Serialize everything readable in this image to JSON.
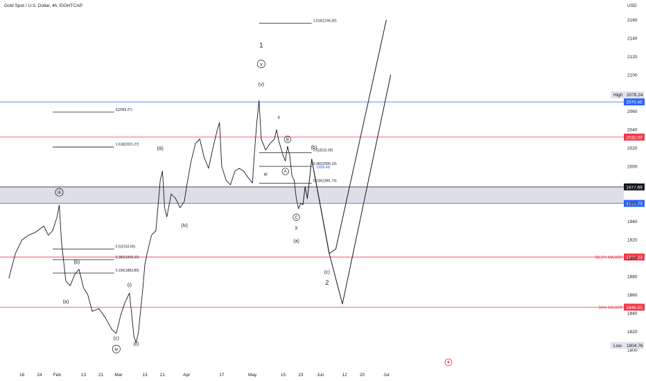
{
  "title": "Gold Spot / U.S. Dollar, 4h, EIGHTCAP",
  "currency": "USD",
  "chart_data": {
    "type": "line",
    "title": "Gold Spot / U.S. Dollar, 4h, EIGHTCAP",
    "symbol": "Gold Spot / U.S. Dollar",
    "timeframe": "4h",
    "exchange": "EIGHTCAP",
    "ylim": [
      1800,
      2165
    ],
    "y_scale": "linear",
    "grid": false,
    "y_ticks": [
      1800,
      1820,
      1840,
      1860,
      1880,
      1900,
      1920,
      1940,
      1960,
      1980,
      2000,
      2020,
      2040,
      2060,
      2080,
      2100,
      2120,
      2140,
      2160
    ],
    "x_ticks": [
      {
        "label": "16",
        "x": "2023-01-16"
      },
      {
        "label": "24",
        "x": "2023-01-24"
      },
      {
        "label": "Feb",
        "x": "2023-02-01"
      },
      {
        "label": "13",
        "x": "2023-02-13"
      },
      {
        "label": "21",
        "x": "2023-02-21"
      },
      {
        "label": "Mar",
        "x": "2023-03-01"
      },
      {
        "label": "13",
        "x": "2023-03-13"
      },
      {
        "label": "21",
        "x": "2023-03-21"
      },
      {
        "label": "Apr",
        "x": "2023-04-01"
      },
      {
        "label": "17",
        "x": "2023-04-17"
      },
      {
        "label": "May",
        "x": "2023-05-01"
      },
      {
        "label": "15",
        "x": "2023-05-15"
      },
      {
        "label": "23",
        "x": "2023-05-23"
      },
      {
        "label": "Jun",
        "x": "2023-06-01"
      },
      {
        "label": "12",
        "x": "2023-06-12"
      },
      {
        "label": "20",
        "x": "2023-06-20"
      },
      {
        "label": "Jul",
        "x": "2023-07-01"
      }
    ],
    "series": [
      {
        "color": "#131722",
        "points": [
          [
            "2023-01-10",
            1878
          ],
          [
            "2023-01-13",
            1905
          ],
          [
            "2023-01-16",
            1920
          ],
          [
            "2023-01-19",
            1925
          ],
          [
            "2023-01-22",
            1928
          ],
          [
            "2023-01-26",
            1935
          ],
          [
            "2023-01-28",
            1925
          ],
          [
            "2023-01-30",
            1930
          ],
          [
            "2023-02-01",
            1945
          ],
          [
            "2023-02-02",
            1958
          ],
          [
            "2023-02-03",
            1918
          ],
          [
            "2023-02-05",
            1875
          ],
          [
            "2023-02-07",
            1870
          ],
          [
            "2023-02-09",
            1882
          ],
          [
            "2023-02-11",
            1888
          ],
          [
            "2023-02-13",
            1868
          ],
          [
            "2023-02-15",
            1860
          ],
          [
            "2023-02-17",
            1842
          ],
          [
            "2023-02-20",
            1845
          ],
          [
            "2023-02-23",
            1835
          ],
          [
            "2023-02-26",
            1822
          ],
          [
            "2023-02-28",
            1818
          ],
          [
            "2023-03-02",
            1838
          ],
          [
            "2023-03-04",
            1852
          ],
          [
            "2023-03-06",
            1862
          ],
          [
            "2023-03-08",
            1815
          ],
          [
            "2023-03-09",
            1808
          ],
          [
            "2023-03-10",
            1818
          ],
          [
            "2023-03-12",
            1865
          ],
          [
            "2023-03-13",
            1893
          ],
          [
            "2023-03-14",
            1905
          ],
          [
            "2023-03-16",
            1925
          ],
          [
            "2023-03-18",
            1930
          ],
          [
            "2023-03-20",
            1985
          ],
          [
            "2023-03-21",
            1995
          ],
          [
            "2023-03-22",
            1955
          ],
          [
            "2023-03-23",
            1945
          ],
          [
            "2023-03-25",
            1970
          ],
          [
            "2023-03-27",
            1965
          ],
          [
            "2023-03-29",
            1955
          ],
          [
            "2023-03-31",
            1962
          ],
          [
            "2023-04-01",
            1978
          ],
          [
            "2023-04-03",
            2005
          ],
          [
            "2023-04-05",
            2025
          ],
          [
            "2023-04-07",
            2030
          ],
          [
            "2023-04-09",
            2010
          ],
          [
            "2023-04-11",
            1998
          ],
          [
            "2023-04-13",
            2020
          ],
          [
            "2023-04-15",
            2040
          ],
          [
            "2023-04-16",
            2048
          ],
          [
            "2023-04-17",
            2000
          ],
          [
            "2023-04-19",
            1985
          ],
          [
            "2023-04-21",
            1980
          ],
          [
            "2023-04-23",
            1995
          ],
          [
            "2023-04-25",
            1998
          ],
          [
            "2023-04-27",
            1995
          ],
          [
            "2023-04-29",
            1988
          ],
          [
            "2023-05-01",
            1982
          ],
          [
            "2023-05-02",
            2018
          ],
          [
            "2023-05-03",
            2048
          ],
          [
            "2023-05-04",
            2072
          ],
          [
            "2023-05-05",
            2030
          ],
          [
            "2023-05-07",
            2018
          ],
          [
            "2023-05-09",
            2025
          ],
          [
            "2023-05-11",
            2030
          ],
          [
            "2023-05-12",
            2040
          ],
          [
            "2023-05-13",
            2028
          ],
          [
            "2023-05-15",
            2012
          ],
          [
            "2023-05-16",
            2006
          ],
          [
            "2023-05-17",
            2022
          ],
          [
            "2023-05-18",
            2012
          ],
          [
            "2023-05-19",
            1990
          ],
          [
            "2023-05-20",
            1985
          ],
          [
            "2023-05-21",
            1965
          ],
          [
            "2023-05-22",
            1954
          ],
          [
            "2023-05-23",
            1960
          ],
          [
            "2023-05-24",
            1958
          ]
        ]
      },
      {
        "color": "#131722",
        "points": [
          [
            "2023-05-24",
            1958
          ],
          [
            "2023-05-25",
            1978
          ],
          [
            "2023-05-26",
            1965
          ],
          [
            "2023-05-28",
            2008
          ],
          [
            "2023-06-05",
            1905
          ],
          [
            "2023-06-08",
            1910
          ],
          [
            "2023-07-01",
            2160
          ]
        ]
      },
      {
        "color": "#131722",
        "points": [
          [
            "2023-05-28",
            2008
          ],
          [
            "2023-06-05",
            1905
          ],
          [
            "2023-06-11",
            1850
          ],
          [
            "2023-07-03",
            2100
          ]
        ]
      }
    ],
    "horizontal_levels": [
      {
        "value": 2070.45,
        "color": "#2962ff",
        "label": "2070.45"
      },
      {
        "value": 2032.09,
        "color": "#f23645",
        "label": "2032.09"
      },
      {
        "value": 1977.69,
        "color": "#131722",
        "label": "1977.69"
      },
      {
        "value": 1959.73,
        "color": "#2962ff",
        "label": "1959.73"
      },
      {
        "value": 1901.23,
        "color": "#f23645",
        "label": "1901.23",
        "note": "38.2% MAJOR"
      },
      {
        "value": 1846.55,
        "color": "#f23645",
        "label": "1846.55",
        "note": "50% MAJOR"
      }
    ],
    "highlight_band": [
      1960,
      1978
    ],
    "high_label": {
      "text": "High",
      "value": "2078.24"
    },
    "low_label": {
      "text": "Low",
      "value": "1804.76"
    },
    "fib_levels": [
      {
        "label": "1.618(2156.30)",
        "value": 2156.3,
        "x1": "2023-05-04",
        "x2": "2023-05-28"
      },
      {
        "label": "2(2059.27)",
        "value": 2059.27,
        "x1": "2023-01-30",
        "x2": "2023-02-27"
      },
      {
        "label": "1.618(2021.27)",
        "value": 2021.27,
        "x1": "2023-01-30",
        "x2": "2023-02-27"
      },
      {
        "label": "0.5(1910.06)",
        "value": 1910.06,
        "x1": "2023-01-30",
        "x2": "2023-02-27"
      },
      {
        "label": "0.382(1898.32)",
        "value": 1898.32,
        "x1": "2023-01-30",
        "x2": "2023-02-27"
      },
      {
        "label": "0.236(1883.80)",
        "value": 1883.8,
        "x1": "2023-01-30",
        "x2": "2023-02-27"
      },
      {
        "label": "0.5(2015.09)",
        "value": 2015.09,
        "x1": "2023-05-04",
        "x2": "2023-05-28"
      },
      {
        "label": "0.382(2000.18)",
        "value": 2000.18,
        "x1": "2023-05-04",
        "x2": "2023-05-28"
      },
      {
        "label": "0.236(1981.74)",
        "value": 1981.74,
        "x1": "2023-05-04",
        "x2": "2023-05-28"
      }
    ],
    "annotations": [
      {
        "text": "1",
        "x": "2023-05-05",
        "y": 2130,
        "size": 10
      },
      {
        "text": "v",
        "x": "2023-05-05",
        "y": 2110,
        "size": 7,
        "circled": true
      },
      {
        "text": "(v)",
        "x": "2023-05-05",
        "y": 2088,
        "size": 7
      },
      {
        "text": "x",
        "x": "2023-05-13",
        "y": 2052,
        "size": 7
      },
      {
        "text": "B",
        "x": "2023-05-17",
        "y": 2028,
        "size": 6,
        "circled": true
      },
      {
        "text": "(b)",
        "x": "2023-05-29",
        "y": 2019,
        "size": 7
      },
      {
        "text": "w",
        "x": "2023-05-07",
        "y": 1990,
        "size": 7
      },
      {
        "text": "A",
        "x": "2023-05-16",
        "y": 1993,
        "size": 6,
        "circled": true
      },
      {
        "text": "C",
        "x": "2023-05-21",
        "y": 1943,
        "size": 6,
        "circled": true
      },
      {
        "text": "y",
        "x": "2023-05-21",
        "y": 1932,
        "size": 7
      },
      {
        "text": "(a)",
        "x": "2023-05-21",
        "y": 1917,
        "size": 7
      },
      {
        "text": "(c)",
        "x": "2023-06-04",
        "y": 1883,
        "size": 7
      },
      {
        "text": "2",
        "x": "2023-06-04",
        "y": 1871,
        "size": 9
      },
      {
        "text": "iii",
        "x": "2023-02-02",
        "y": 1970,
        "size": 7,
        "circled": true
      },
      {
        "text": "(b)",
        "x": "2023-02-10",
        "y": 1894,
        "size": 7
      },
      {
        "text": "(a)",
        "x": "2023-02-05",
        "y": 1851,
        "size": 7
      },
      {
        "text": "(c)",
        "x": "2023-02-28",
        "y": 1811,
        "size": 7
      },
      {
        "text": "iv",
        "x": "2023-02-28",
        "y": 1799,
        "size": 7,
        "circled": true
      },
      {
        "text": "(i)",
        "x": "2023-03-06",
        "y": 1869,
        "size": 7
      },
      {
        "text": "(ii)",
        "x": "2023-03-09",
        "y": 1805,
        "size": 7
      },
      {
        "text": "(iii)",
        "x": "2023-03-20",
        "y": 2018,
        "size": 7
      },
      {
        "text": "(iv)",
        "x": "2023-03-31",
        "y": 1934,
        "size": 7
      }
    ],
    "extra_labels": [
      {
        "text": "1999.48",
        "x": "2023-05-30",
        "y": 1998,
        "color": "#2962ff"
      }
    ]
  }
}
